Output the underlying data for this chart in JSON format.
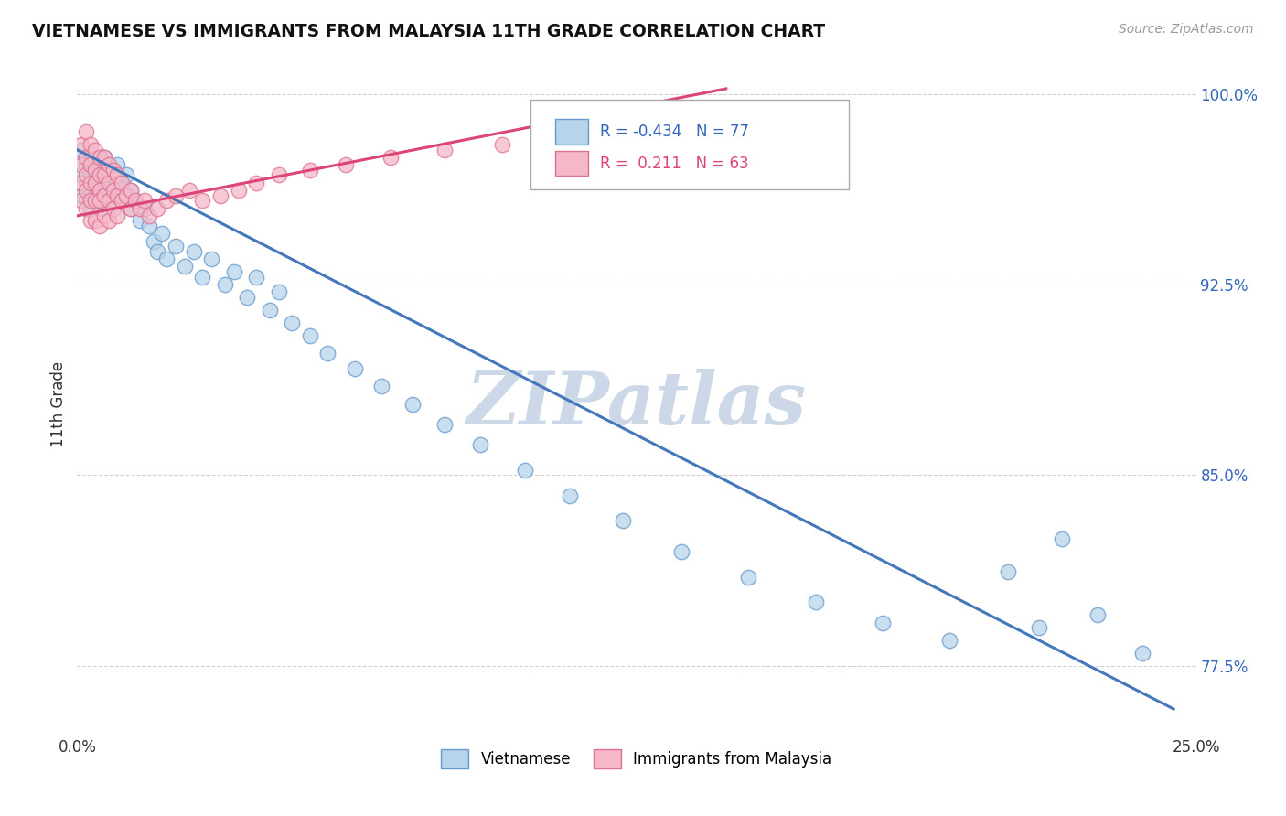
{
  "title": "VIETNAMESE VS IMMIGRANTS FROM MALAYSIA 11TH GRADE CORRELATION CHART",
  "source_text": "Source: ZipAtlas.com",
  "ylabel_label": "11th Grade",
  "legend_blue_label": "Vietnamese",
  "legend_pink_label": "Immigrants from Malaysia",
  "r_blue": -0.434,
  "n_blue": 77,
  "r_pink": 0.211,
  "n_pink": 63,
  "blue_color": "#b8d4ea",
  "blue_edge": "#6699cc",
  "pink_color": "#f5b8c8",
  "pink_edge": "#e07090",
  "trend_blue": "#4477bb",
  "trend_pink": "#dd4477",
  "watermark_color": "#ccd8e8",
  "background_color": "#ffffff",
  "xmin": 0.0,
  "xmax": 0.25,
  "ymin": 0.748,
  "ymax": 1.008,
  "blue_scatter_x": [
    0.001,
    0.001,
    0.001,
    0.002,
    0.002,
    0.002,
    0.002,
    0.003,
    0.003,
    0.003,
    0.003,
    0.004,
    0.004,
    0.004,
    0.004,
    0.005,
    0.005,
    0.005,
    0.005,
    0.006,
    0.006,
    0.006,
    0.006,
    0.007,
    0.007,
    0.007,
    0.008,
    0.008,
    0.008,
    0.009,
    0.009,
    0.01,
    0.01,
    0.011,
    0.011,
    0.012,
    0.012,
    0.013,
    0.014,
    0.015,
    0.016,
    0.017,
    0.018,
    0.019,
    0.02,
    0.022,
    0.024,
    0.026,
    0.028,
    0.03,
    0.033,
    0.035,
    0.038,
    0.04,
    0.043,
    0.045,
    0.048,
    0.052,
    0.056,
    0.062,
    0.068,
    0.075,
    0.082,
    0.09,
    0.1,
    0.11,
    0.122,
    0.135,
    0.15,
    0.165,
    0.18,
    0.195,
    0.208,
    0.215,
    0.22,
    0.228,
    0.238
  ],
  "blue_scatter_y": [
    0.968,
    0.978,
    0.96,
    0.975,
    0.965,
    0.972,
    0.958,
    0.97,
    0.968,
    0.962,
    0.955,
    0.972,
    0.965,
    0.96,
    0.975,
    0.968,
    0.962,
    0.972,
    0.958,
    0.965,
    0.97,
    0.96,
    0.975,
    0.965,
    0.968,
    0.955,
    0.96,
    0.97,
    0.958,
    0.965,
    0.972,
    0.958,
    0.965,
    0.96,
    0.968,
    0.955,
    0.962,
    0.958,
    0.95,
    0.955,
    0.948,
    0.942,
    0.938,
    0.945,
    0.935,
    0.94,
    0.932,
    0.938,
    0.928,
    0.935,
    0.925,
    0.93,
    0.92,
    0.928,
    0.915,
    0.922,
    0.91,
    0.905,
    0.898,
    0.892,
    0.885,
    0.878,
    0.87,
    0.862,
    0.852,
    0.842,
    0.832,
    0.82,
    0.81,
    0.8,
    0.792,
    0.785,
    0.812,
    0.79,
    0.825,
    0.795,
    0.78
  ],
  "pink_scatter_x": [
    0.001,
    0.001,
    0.001,
    0.001,
    0.002,
    0.002,
    0.002,
    0.002,
    0.002,
    0.003,
    0.003,
    0.003,
    0.003,
    0.003,
    0.004,
    0.004,
    0.004,
    0.004,
    0.004,
    0.005,
    0.005,
    0.005,
    0.005,
    0.005,
    0.006,
    0.006,
    0.006,
    0.006,
    0.007,
    0.007,
    0.007,
    0.007,
    0.008,
    0.008,
    0.008,
    0.009,
    0.009,
    0.009,
    0.01,
    0.01,
    0.011,
    0.012,
    0.012,
    0.013,
    0.014,
    0.015,
    0.016,
    0.018,
    0.02,
    0.022,
    0.025,
    0.028,
    0.032,
    0.036,
    0.04,
    0.045,
    0.052,
    0.06,
    0.07,
    0.082,
    0.095,
    0.11,
    0.13
  ],
  "pink_scatter_y": [
    0.98,
    0.972,
    0.965,
    0.958,
    0.985,
    0.975,
    0.968,
    0.962,
    0.955,
    0.98,
    0.972,
    0.965,
    0.958,
    0.95,
    0.978,
    0.97,
    0.965,
    0.958,
    0.95,
    0.975,
    0.968,
    0.962,
    0.958,
    0.948,
    0.975,
    0.968,
    0.96,
    0.952,
    0.972,
    0.965,
    0.958,
    0.95,
    0.97,
    0.962,
    0.955,
    0.968,
    0.96,
    0.952,
    0.965,
    0.958,
    0.96,
    0.962,
    0.955,
    0.958,
    0.955,
    0.958,
    0.952,
    0.955,
    0.958,
    0.96,
    0.962,
    0.958,
    0.96,
    0.962,
    0.965,
    0.968,
    0.97,
    0.972,
    0.975,
    0.978,
    0.98,
    0.985,
    0.99
  ],
  "blue_trend_x0": 0.0,
  "blue_trend_y0": 0.978,
  "blue_trend_x1": 0.245,
  "blue_trend_y1": 0.758,
  "pink_trend_x0": 0.0,
  "pink_trend_y0": 0.952,
  "pink_trend_x1": 0.145,
  "pink_trend_y1": 1.002
}
